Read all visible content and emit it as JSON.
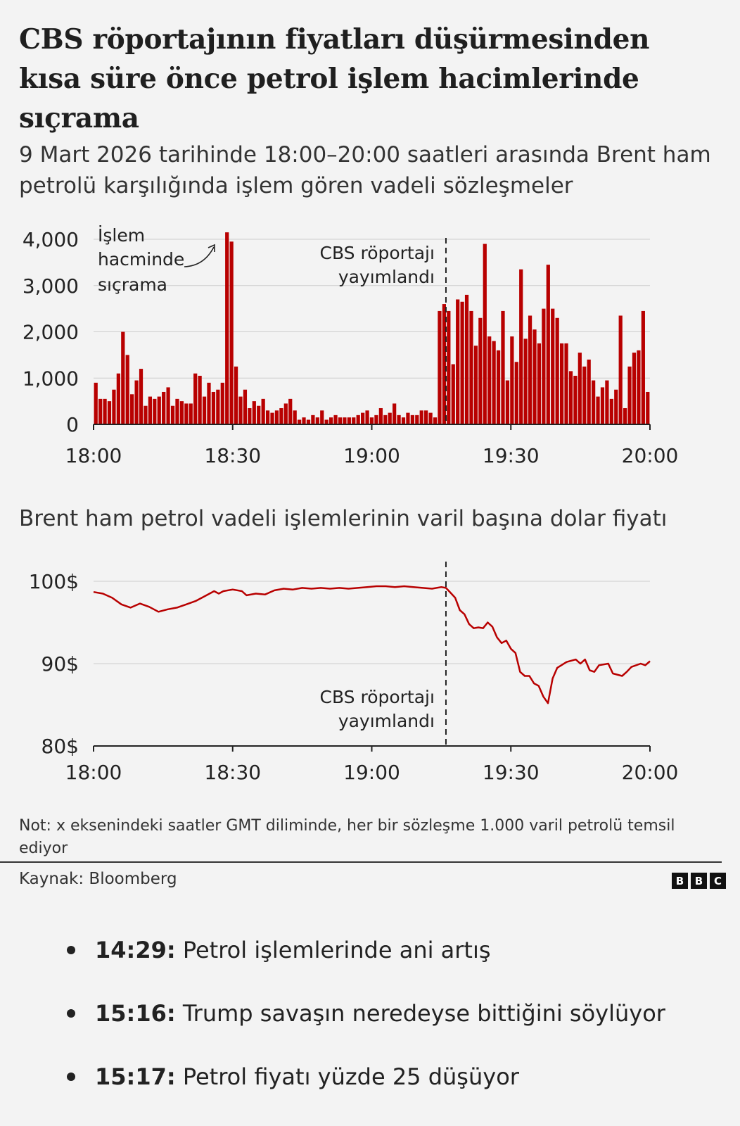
{
  "title": "CBS röportajının fiyatları düşürmesinden kısa süre önce petrol işlem hacimlerinde sıçrama",
  "subtitle": "9 Mart 2026 tarihinde 18:00–20:00 saatleri arasında Brent ham petrolü karşılığında işlem gören vadeli sözleşmeler",
  "colors": {
    "bar": "#b80000",
    "line": "#b80000",
    "axis": "#222222",
    "grid": "#cccccc"
  },
  "chart_data": [
    {
      "type": "bar",
      "title": "",
      "xlabel": "",
      "ylabel": "",
      "x_unit": "minutes after 18:00",
      "x_ticks": [
        {
          "value": 0,
          "label": "18:00"
        },
        {
          "value": 30,
          "label": "18:30"
        },
        {
          "value": 60,
          "label": "19:00"
        },
        {
          "value": 90,
          "label": "19:30"
        },
        {
          "value": 120,
          "label": "20:00"
        }
      ],
      "y_ticks": [
        {
          "value": 0,
          "label": "0"
        },
        {
          "value": 1000,
          "label": "1,000"
        },
        {
          "value": 2000,
          "label": "2,000"
        },
        {
          "value": 3000,
          "label": "3,000"
        },
        {
          "value": 4000,
          "label": "4,000"
        }
      ],
      "xlim": [
        0,
        120
      ],
      "ylim": [
        0,
        4200
      ],
      "grid": true,
      "values": [
        900,
        550,
        550,
        500,
        750,
        1100,
        2000,
        1500,
        650,
        950,
        1200,
        400,
        600,
        550,
        600,
        700,
        800,
        400,
        550,
        500,
        450,
        450,
        1100,
        1050,
        600,
        900,
        700,
        750,
        900,
        4150,
        3950,
        1250,
        600,
        750,
        350,
        500,
        400,
        550,
        300,
        250,
        300,
        350,
        450,
        550,
        300,
        100,
        150,
        100,
        200,
        150,
        300,
        100,
        150,
        200,
        150,
        150,
        150,
        150,
        200,
        250,
        300,
        150,
        200,
        350,
        200,
        250,
        450,
        200,
        150,
        250,
        200,
        200,
        300,
        300,
        250,
        150,
        2450,
        2600,
        2450,
        1300,
        2700,
        2650,
        2800,
        2450,
        1700,
        2300,
        3900,
        1900,
        1800,
        1600,
        2450,
        950,
        1900,
        1350,
        3350,
        1850,
        2350,
        2050,
        1750,
        2500,
        3450,
        2500,
        2300,
        1750,
        1750,
        1150,
        1050,
        1550,
        1250,
        1400,
        950,
        600,
        800,
        950,
        550,
        750,
        2350,
        350,
        1250,
        1550,
        1600,
        2450,
        700
      ],
      "annotations": [
        {
          "text": [
            "İşlem",
            "hacminde",
            "sıçrama"
          ]
        },
        {
          "text": [
            "CBS röportajı",
            "yayımlandı"
          ],
          "x": 76
        }
      ]
    },
    {
      "type": "line",
      "title": "Brent ham petrol vadeli işlemlerinin varil başına dolar fiyatı",
      "xlabel": "",
      "ylabel": "",
      "x_unit": "minutes after 18:00",
      "x_ticks": [
        {
          "value": 0,
          "label": "18:00"
        },
        {
          "value": 30,
          "label": "18:30"
        },
        {
          "value": 60,
          "label": "19:00"
        },
        {
          "value": 90,
          "label": "19:30"
        },
        {
          "value": 120,
          "label": "20:00"
        }
      ],
      "y_ticks": [
        {
          "value": 80,
          "label": "80$"
        },
        {
          "value": 90,
          "label": "90$"
        },
        {
          "value": 100,
          "label": "100$"
        }
      ],
      "xlim": [
        0,
        120
      ],
      "ylim": [
        80,
        100
      ],
      "grid": true,
      "series": [
        {
          "points": [
            [
              0,
              98.7
            ],
            [
              2,
              98.5
            ],
            [
              4,
              98.0
            ],
            [
              6,
              97.2
            ],
            [
              8,
              96.8
            ],
            [
              10,
              97.3
            ],
            [
              12,
              96.9
            ],
            [
              13,
              96.6
            ],
            [
              14,
              96.3
            ],
            [
              16,
              96.6
            ],
            [
              18,
              96.8
            ],
            [
              20,
              97.2
            ],
            [
              22,
              97.6
            ],
            [
              24,
              98.2
            ],
            [
              26,
              98.8
            ],
            [
              27,
              98.5
            ],
            [
              28,
              98.8
            ],
            [
              30,
              99.0
            ],
            [
              32,
              98.8
            ],
            [
              33,
              98.3
            ],
            [
              35,
              98.5
            ],
            [
              37,
              98.4
            ],
            [
              39,
              98.9
            ],
            [
              41,
              99.1
            ],
            [
              43,
              99.0
            ],
            [
              45,
              99.2
            ],
            [
              47,
              99.1
            ],
            [
              49,
              99.2
            ],
            [
              51,
              99.1
            ],
            [
              53,
              99.2
            ],
            [
              55,
              99.1
            ],
            [
              57,
              99.2
            ],
            [
              59,
              99.3
            ],
            [
              61,
              99.4
            ],
            [
              63,
              99.4
            ],
            [
              65,
              99.3
            ],
            [
              67,
              99.4
            ],
            [
              69,
              99.3
            ],
            [
              71,
              99.2
            ],
            [
              73,
              99.1
            ],
            [
              75,
              99.3
            ],
            [
              76,
              99.2
            ],
            [
              77,
              98.6
            ],
            [
              78,
              98.0
            ],
            [
              79,
              96.5
            ],
            [
              80,
              96.0
            ],
            [
              81,
              94.8
            ],
            [
              82,
              94.3
            ],
            [
              83,
              94.4
            ],
            [
              84,
              94.3
            ],
            [
              85,
              95.0
            ],
            [
              86,
              94.5
            ],
            [
              87,
              93.2
            ],
            [
              88,
              92.5
            ],
            [
              89,
              92.8
            ],
            [
              90,
              91.8
            ],
            [
              91,
              91.3
            ],
            [
              92,
              89.0
            ],
            [
              93,
              88.5
            ],
            [
              94,
              88.5
            ],
            [
              95,
              87.6
            ],
            [
              96,
              87.3
            ],
            [
              97,
              86.0
            ],
            [
              98,
              85.2
            ],
            [
              99,
              88.2
            ],
            [
              100,
              89.5
            ],
            [
              102,
              90.2
            ],
            [
              104,
              90.5
            ],
            [
              105,
              90.0
            ],
            [
              106,
              90.5
            ],
            [
              107,
              89.2
            ],
            [
              108,
              89.0
            ],
            [
              109,
              89.8
            ],
            [
              111,
              90.0
            ],
            [
              112,
              88.8
            ],
            [
              114,
              88.5
            ],
            [
              115,
              89.0
            ],
            [
              116,
              89.6
            ],
            [
              118,
              90.0
            ],
            [
              119,
              89.8
            ],
            [
              120,
              90.3
            ]
          ]
        }
      ],
      "annotations": [
        {
          "text": [
            "CBS röportajı",
            "yayımlandı"
          ],
          "x": 76
        }
      ]
    }
  ],
  "note": "Not: x eksenindeki saatler GMT diliminde, her bir sözleşme 1.000 varil petrolü temsil ediyor",
  "source": "Kaynak: Bloomberg",
  "logo": [
    "B",
    "B",
    "C"
  ],
  "events": [
    {
      "time": "14:29:",
      "text": " Petrol işlemlerinde ani artış"
    },
    {
      "time": "15:16:",
      "text": " Trump savaşın neredeyse bittiğini söylüyor"
    },
    {
      "time": "15:17:",
      "text": " Petrol fiyatı yüzde 25 düşüyor"
    }
  ]
}
